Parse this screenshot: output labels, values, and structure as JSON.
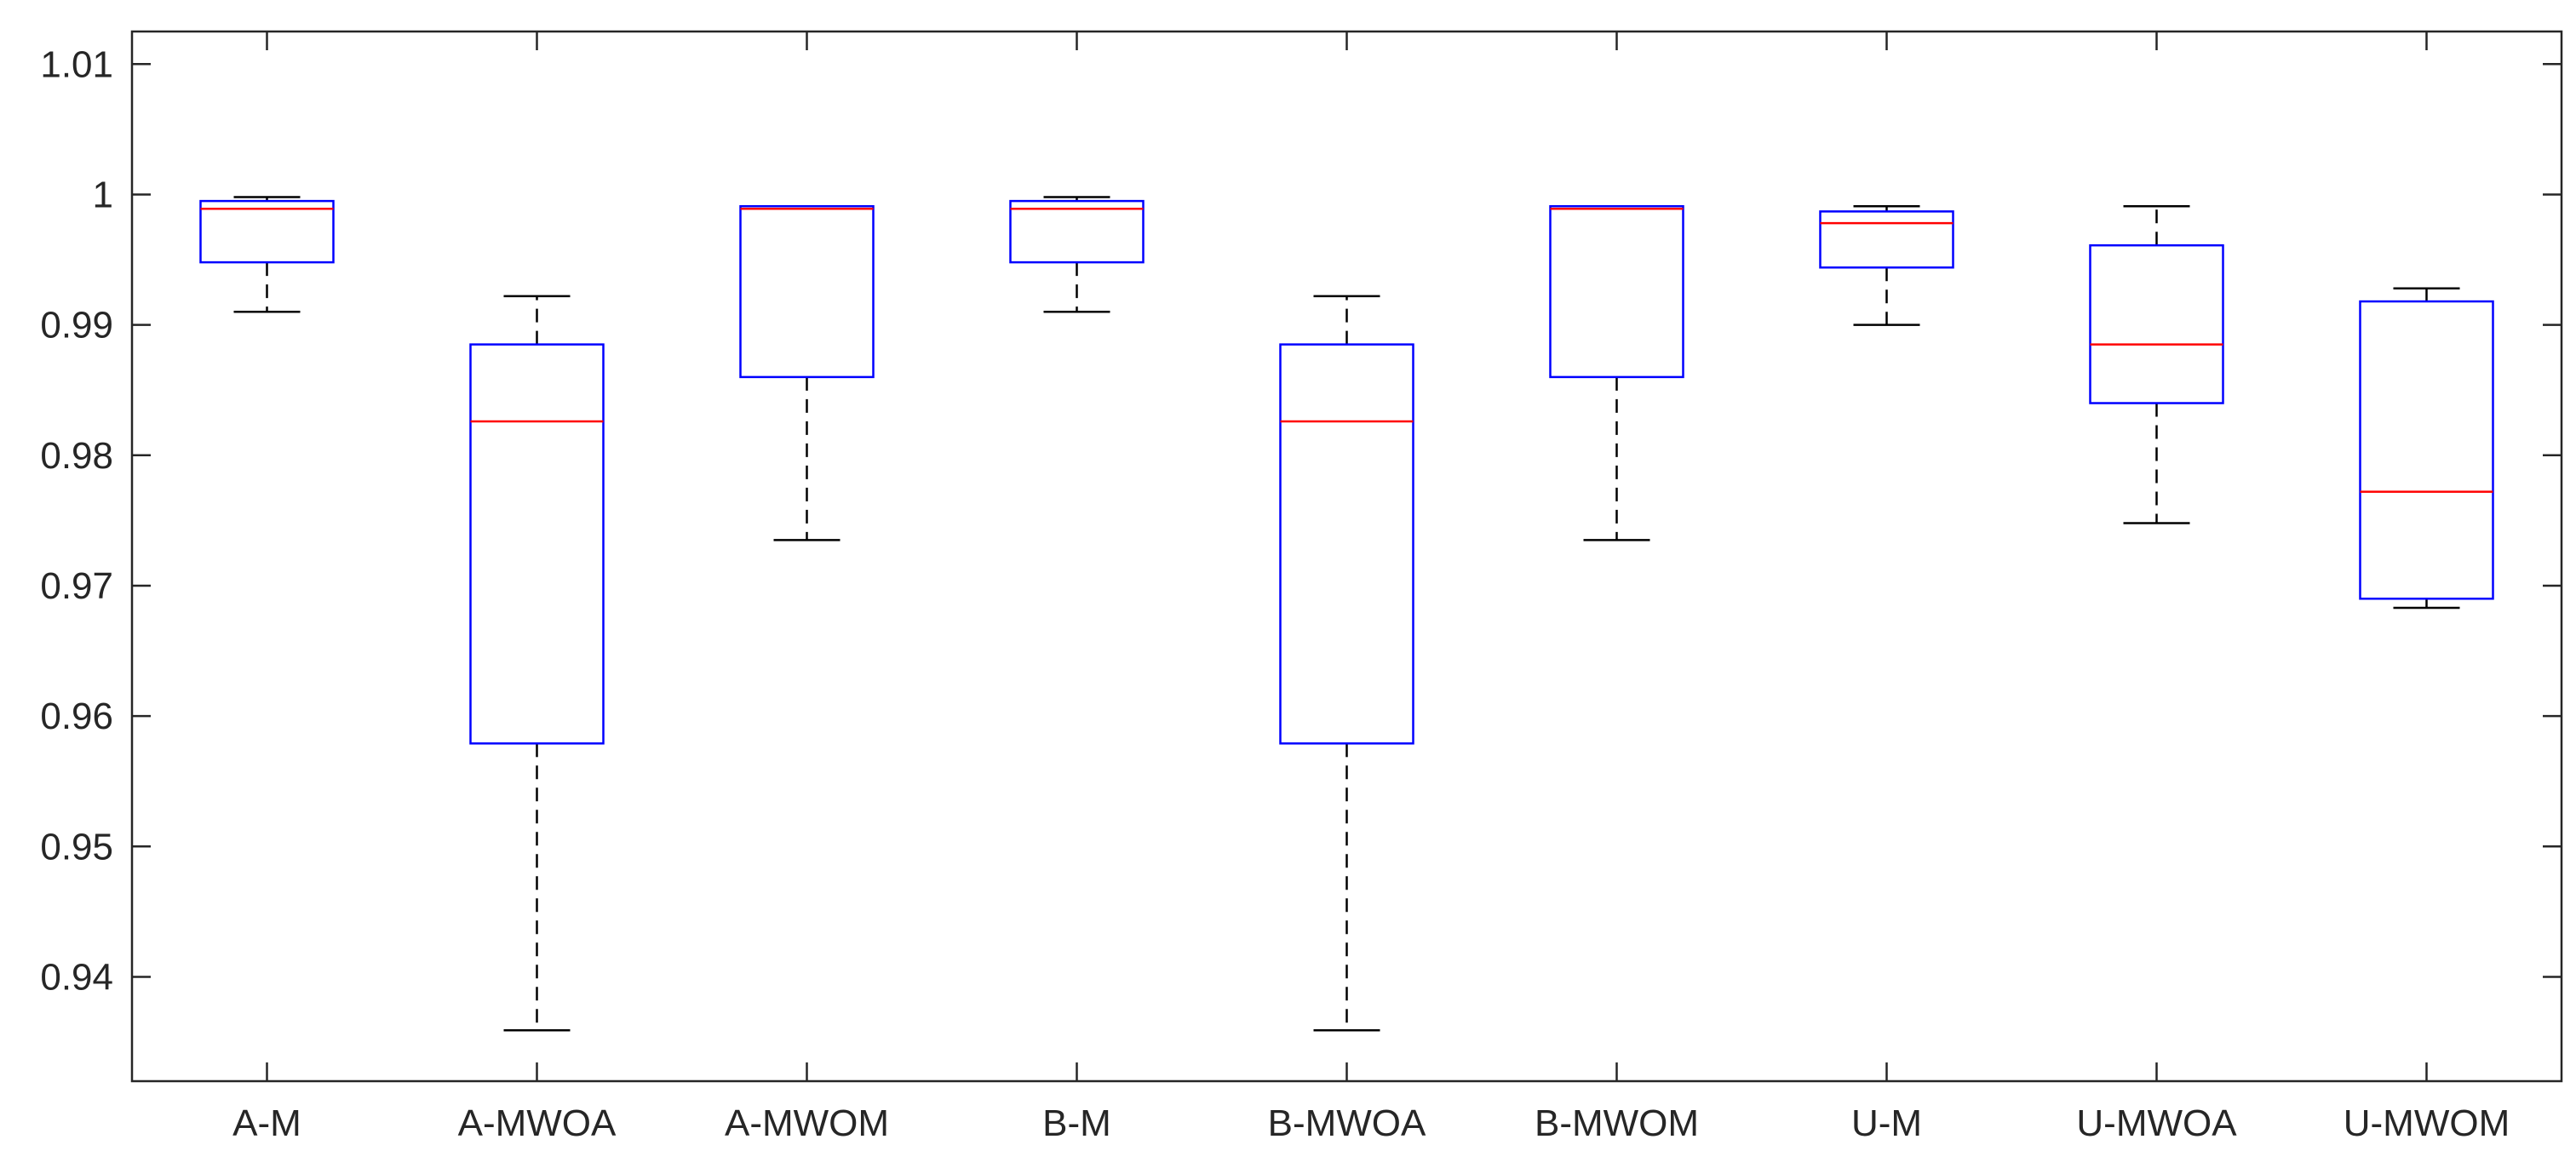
{
  "chart_data": {
    "type": "boxplot",
    "title": "",
    "xlabel": "",
    "ylabel": "",
    "ylim": [
      0.932,
      1.0125
    ],
    "yticks": [
      0.94,
      0.95,
      0.96,
      0.97,
      0.98,
      0.99,
      1,
      1.01
    ],
    "ytick_labels": [
      "0.94",
      "0.95",
      "0.96",
      "0.97",
      "0.98",
      "0.99",
      "1",
      "1.01"
    ],
    "grid": false,
    "categories": [
      "A-M",
      "A-MWOA",
      "A-MWOM",
      "B-M",
      "B-MWOA",
      "B-MWOM",
      "U-M",
      "U-MWOA",
      "U-MWOM"
    ],
    "boxes": [
      {
        "category": "A-M",
        "whisker_low": 0.991,
        "q1": 0.9948,
        "median": 0.9989,
        "q3": 0.9995,
        "whisker_high": 0.9998
      },
      {
        "category": "A-MWOA",
        "whisker_low": 0.9359,
        "q1": 0.9579,
        "median": 0.9826,
        "q3": 0.9885,
        "whisker_high": 0.9922
      },
      {
        "category": "A-MWOM",
        "whisker_low": 0.9735,
        "q1": 0.986,
        "median": 0.9989,
        "q3": 0.9991,
        "whisker_high": 0.9991
      },
      {
        "category": "B-M",
        "whisker_low": 0.991,
        "q1": 0.9948,
        "median": 0.9989,
        "q3": 0.9995,
        "whisker_high": 0.9998
      },
      {
        "category": "B-MWOA",
        "whisker_low": 0.9359,
        "q1": 0.9579,
        "median": 0.9826,
        "q3": 0.9885,
        "whisker_high": 0.9922
      },
      {
        "category": "B-MWOM",
        "whisker_low": 0.9735,
        "q1": 0.986,
        "median": 0.9989,
        "q3": 0.9991,
        "whisker_high": 0.9991
      },
      {
        "category": "U-M",
        "whisker_low": 0.99,
        "q1": 0.9944,
        "median": 0.9978,
        "q3": 0.9987,
        "whisker_high": 0.9991
      },
      {
        "category": "U-MWOA",
        "whisker_low": 0.9748,
        "q1": 0.984,
        "median": 0.9885,
        "q3": 0.9961,
        "whisker_high": 0.9991
      },
      {
        "category": "U-MWOM",
        "whisker_low": 0.9683,
        "q1": 0.969,
        "median": 0.9772,
        "q3": 0.9918,
        "whisker_high": 0.9928
      }
    ],
    "colors": {
      "box": "#0000ff",
      "median": "#ff0000",
      "whisker": "#000000",
      "axis": "#262626"
    }
  }
}
